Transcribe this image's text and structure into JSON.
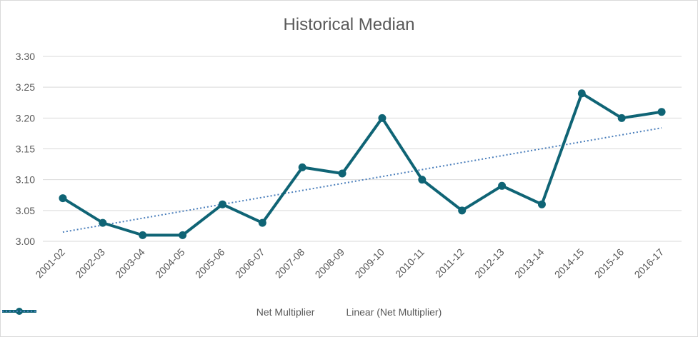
{
  "chart_data": {
    "type": "line",
    "title": "Historical Median",
    "categories": [
      "2001-02",
      "2002-03",
      "2003-04",
      "2004-05",
      "2005-06",
      "2006-07",
      "2007-08",
      "2008-09",
      "2009-10",
      "2010-11",
      "2011-12",
      "2012-13",
      "2013-14",
      "2014-15",
      "2015-16",
      "2016-17"
    ],
    "series": [
      {
        "name": "Net Multiplier",
        "values": [
          3.07,
          3.03,
          3.01,
          3.01,
          3.06,
          3.03,
          3.12,
          3.11,
          3.2,
          3.1,
          3.05,
          3.09,
          3.06,
          3.24,
          3.2,
          3.21
        ],
        "color": "#0f6475",
        "marker": "circle"
      }
    ],
    "trendline": {
      "name": "Linear (Net Multiplier)",
      "type": "linear",
      "start": 3.015,
      "end": 3.184,
      "color": "#4a7ebb",
      "style": "dotted"
    },
    "ylim": [
      3.0,
      3.3
    ],
    "yticks": [
      "3.00",
      "3.05",
      "3.10",
      "3.15",
      "3.20",
      "3.25",
      "3.30"
    ],
    "grid": true,
    "legend_position": "bottom"
  }
}
